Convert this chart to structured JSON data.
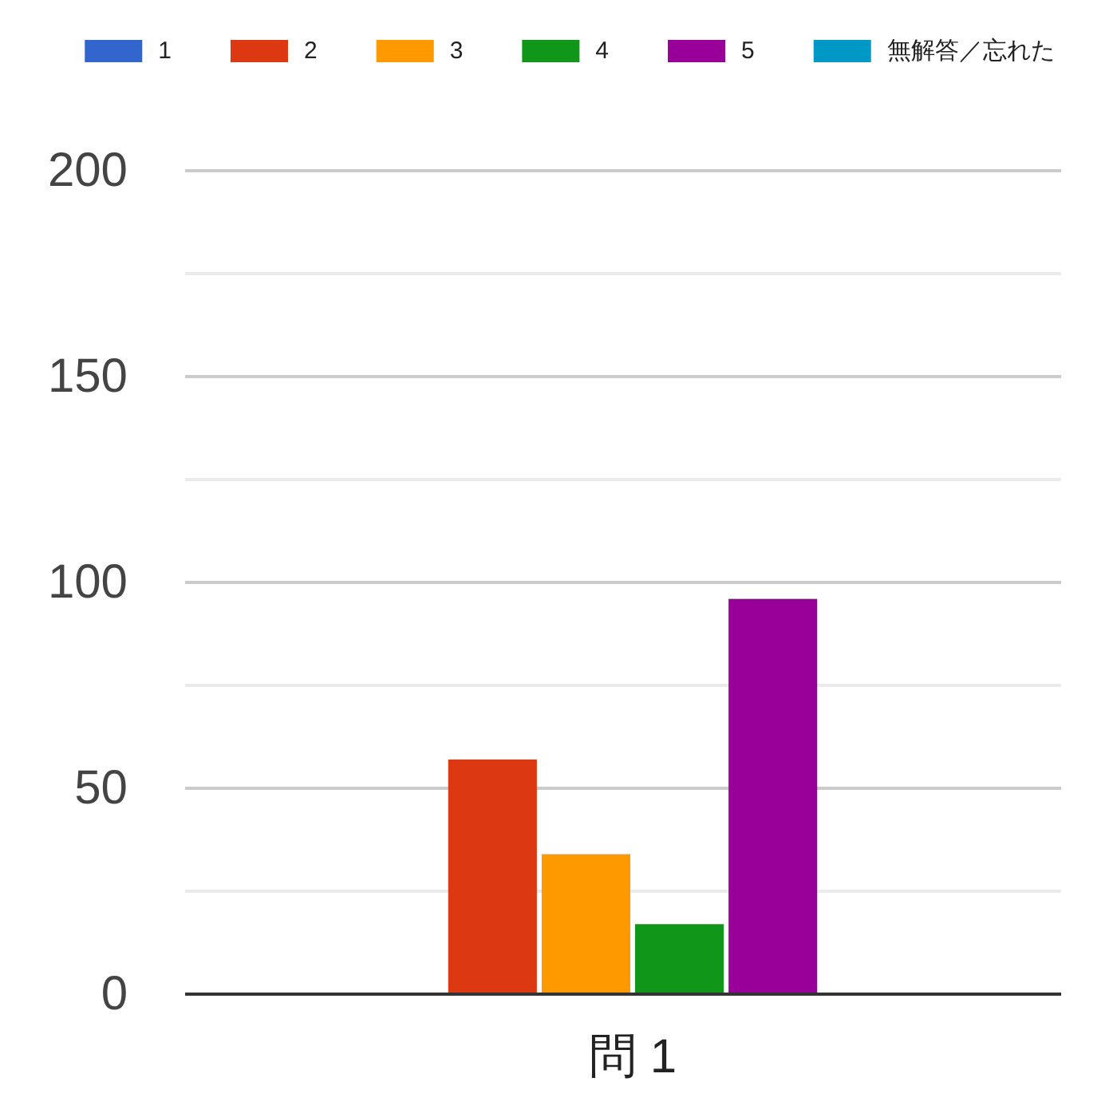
{
  "chart_data": {
    "type": "bar",
    "categories": [
      "問 1"
    ],
    "series": [
      {
        "name": "1",
        "color": "#3366cc",
        "values": [
          0
        ]
      },
      {
        "name": "2",
        "color": "#dc3912",
        "values": [
          57
        ]
      },
      {
        "name": "3",
        "color": "#ff9900",
        "values": [
          34
        ]
      },
      {
        "name": "4",
        "color": "#109618",
        "values": [
          17
        ]
      },
      {
        "name": "5",
        "color": "#990099",
        "values": [
          96
        ]
      },
      {
        "name": "無解答／忘れた",
        "color": "#0099c6",
        "values": [
          0
        ]
      }
    ],
    "ylim": [
      0,
      200
    ],
    "yticks": [
      0,
      {
        "value": 25,
        "label": null
      },
      50,
      {
        "value": 75,
        "label": null
      },
      100,
      {
        "value": 125,
        "label": null
      },
      150,
      {
        "value": 175,
        "label": null
      },
      200
    ],
    "grid": "y",
    "legend": "top"
  }
}
